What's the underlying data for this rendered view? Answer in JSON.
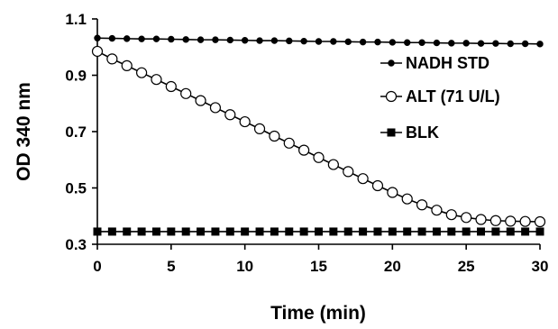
{
  "chart_data": {
    "type": "line",
    "xlabel": "Time (min)",
    "ylabel": "OD 340 nm",
    "xlim": [
      0,
      30
    ],
    "ylim": [
      0.3,
      1.1
    ],
    "x_ticks": [
      "0",
      "5",
      "10",
      "15",
      "20",
      "25",
      "30"
    ],
    "y_ticks": [
      "0.3",
      "0.5",
      "0.7",
      "0.9",
      "1.1"
    ],
    "grid": false,
    "legend_position": "right",
    "x": [
      0,
      1,
      2,
      3,
      4,
      5,
      6,
      7,
      8,
      9,
      10,
      11,
      12,
      13,
      14,
      15,
      16,
      17,
      18,
      19,
      20,
      21,
      22,
      23,
      24,
      25,
      26,
      27,
      28,
      29,
      30
    ],
    "series": [
      {
        "name": "NADH STD",
        "marker": "filled-circle",
        "color": "#000000",
        "values": [
          1.032,
          1.031,
          1.03,
          1.029,
          1.029,
          1.028,
          1.027,
          1.026,
          1.026,
          1.025,
          1.024,
          1.023,
          1.023,
          1.022,
          1.021,
          1.02,
          1.02,
          1.019,
          1.018,
          1.018,
          1.017,
          1.016,
          1.016,
          1.015,
          1.014,
          1.014,
          1.013,
          1.013,
          1.012,
          1.012,
          1.011
        ]
      },
      {
        "name": "ALT (71 U/L)",
        "marker": "open-circle",
        "color": "#000000",
        "values": [
          0.985,
          0.958,
          0.934,
          0.909,
          0.885,
          0.86,
          0.835,
          0.81,
          0.785,
          0.76,
          0.735,
          0.71,
          0.684,
          0.659,
          0.634,
          0.608,
          0.583,
          0.558,
          0.533,
          0.508,
          0.484,
          0.461,
          0.44,
          0.421,
          0.405,
          0.395,
          0.388,
          0.384,
          0.382,
          0.381,
          0.38
        ]
      },
      {
        "name": "BLK",
        "marker": "filled-square",
        "color": "#000000",
        "values": [
          0.345,
          0.345,
          0.345,
          0.345,
          0.345,
          0.345,
          0.345,
          0.345,
          0.345,
          0.345,
          0.345,
          0.345,
          0.345,
          0.345,
          0.345,
          0.345,
          0.345,
          0.345,
          0.345,
          0.345,
          0.345,
          0.345,
          0.345,
          0.345,
          0.345,
          0.345,
          0.345,
          0.345,
          0.345,
          0.345,
          0.345
        ]
      }
    ]
  }
}
